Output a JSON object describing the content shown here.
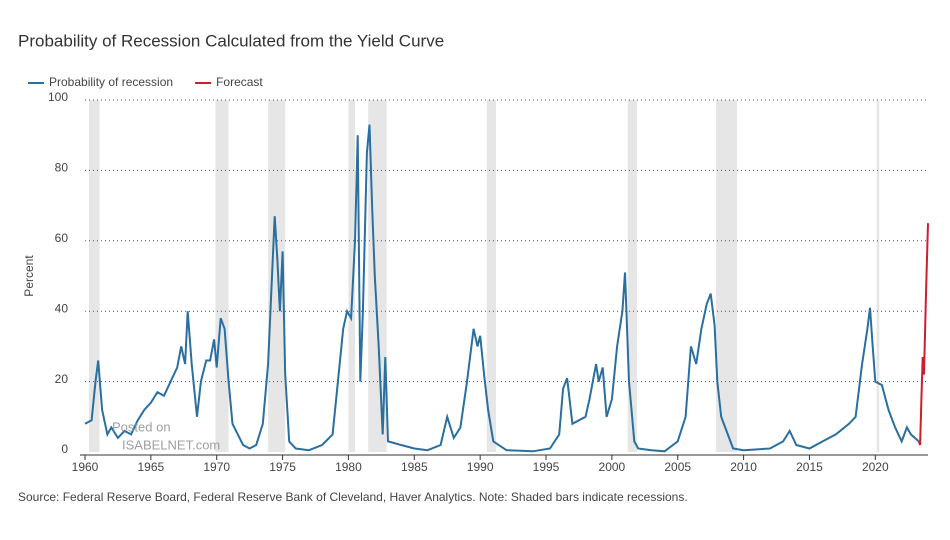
{
  "chart_data": {
    "type": "line",
    "title": "Probability of Recession Calculated from the Yield Curve",
    "y_label": "Percent",
    "source": "Source: Federal Reserve Board, Federal Reserve Bank of Cleveland, Haver Analytics. Note: Shaded bars indicate recessions.",
    "watermark": [
      "Posted on",
      "ISABELNET.com"
    ],
    "xlim": [
      1960,
      2024
    ],
    "xticks": [
      1960,
      1965,
      1970,
      1975,
      1980,
      1985,
      1990,
      1995,
      2000,
      2005,
      2010,
      2015,
      2020
    ],
    "ylim": [
      0,
      100
    ],
    "yticks": [
      0,
      20,
      40,
      60,
      80,
      100
    ],
    "grid": true,
    "recessions": [
      [
        1960.3,
        1961.1
      ],
      [
        1969.9,
        1970.9
      ],
      [
        1973.9,
        1975.2
      ],
      [
        1980.0,
        1980.5
      ],
      [
        1981.5,
        1982.9
      ],
      [
        1990.5,
        1991.2
      ],
      [
        2001.2,
        2001.9
      ],
      [
        2007.9,
        2009.5
      ],
      [
        2020.1,
        2020.3
      ]
    ],
    "recession_color": "#e6e6e6",
    "series": [
      {
        "name": "Probability of recession",
        "color": "#2a6fa0",
        "x": [
          1960.0,
          1960.5,
          1960.8,
          1961.0,
          1961.3,
          1961.7,
          1962.0,
          1962.5,
          1963.0,
          1963.5,
          1964.0,
          1964.5,
          1965.0,
          1965.5,
          1966.0,
          1966.5,
          1967.0,
          1967.3,
          1967.6,
          1967.8,
          1968.1,
          1968.5,
          1968.8,
          1969.2,
          1969.5,
          1969.8,
          1970.0,
          1970.3,
          1970.6,
          1970.9,
          1971.2,
          1971.6,
          1972.0,
          1972.5,
          1973.0,
          1973.5,
          1973.9,
          1974.2,
          1974.4,
          1974.6,
          1974.8,
          1975.0,
          1975.2,
          1975.5,
          1976.0,
          1977.0,
          1978.0,
          1978.8,
          1979.2,
          1979.6,
          1979.9,
          1980.2,
          1980.5,
          1980.7,
          1980.9,
          1981.1,
          1981.4,
          1981.6,
          1981.8,
          1982.0,
          1982.3,
          1982.6,
          1982.8,
          1983.0,
          1984.0,
          1985.0,
          1986.0,
          1987.0,
          1987.5,
          1988.0,
          1988.5,
          1989.0,
          1989.5,
          1989.8,
          1990.0,
          1990.3,
          1990.6,
          1991.0,
          1992.0,
          1994.0,
          1995.3,
          1996.0,
          1996.3,
          1996.6,
          1997.0,
          1998.0,
          1998.3,
          1998.8,
          1999.0,
          1999.3,
          1999.6,
          2000.0,
          2000.4,
          2000.8,
          2001.0,
          2001.3,
          2001.7,
          2002.0,
          2003.0,
          2004.0,
          2005.0,
          2005.6,
          2006.0,
          2006.4,
          2006.8,
          2007.2,
          2007.5,
          2007.8,
          2008.0,
          2008.3,
          2008.8,
          2009.2,
          2010.0,
          2012.0,
          2013.0,
          2013.5,
          2014.0,
          2015.0,
          2016.0,
          2017.0,
          2018.0,
          2018.5,
          2019.0,
          2019.4,
          2019.6,
          2019.8,
          2020.0,
          2020.5,
          2021.0,
          2021.5,
          2022.0,
          2022.4,
          2022.7,
          2023.0,
          2023.3
        ],
        "values": [
          8,
          9,
          20,
          26,
          12,
          5,
          7,
          4,
          6,
          5,
          9,
          12,
          14,
          17,
          16,
          20,
          24,
          30,
          25,
          40,
          25,
          10,
          20,
          26,
          26,
          32,
          24,
          38,
          35,
          20,
          8,
          5,
          2,
          1,
          2,
          8,
          25,
          50,
          67,
          55,
          40,
          57,
          22,
          3,
          1,
          0.5,
          2,
          5,
          20,
          35,
          40,
          38,
          60,
          90,
          20,
          40,
          85,
          93,
          70,
          50,
          30,
          5,
          27,
          3,
          2,
          1,
          0.5,
          2,
          10,
          4,
          7,
          20,
          35,
          30,
          33,
          22,
          12,
          3,
          0.5,
          0.2,
          1,
          5,
          18,
          21,
          8,
          10,
          15,
          25,
          20,
          24,
          10,
          15,
          30,
          40,
          51,
          20,
          3,
          1,
          0.5,
          0.2,
          3,
          10,
          30,
          25,
          35,
          42,
          45,
          36,
          20,
          10,
          5,
          1,
          0.5,
          1,
          3,
          6,
          2,
          1,
          3,
          5,
          8,
          10,
          25,
          35,
          41,
          30,
          20,
          19,
          12,
          7,
          3,
          7,
          5,
          4,
          3
        ]
      },
      {
        "name": "Forecast",
        "color": "#c8202f",
        "x": [
          2023.3,
          2023.4,
          2023.5,
          2023.6,
          2023.7,
          2023.85,
          2024.0
        ],
        "values": [
          3,
          2,
          15,
          27,
          22,
          45,
          65
        ]
      }
    ]
  }
}
